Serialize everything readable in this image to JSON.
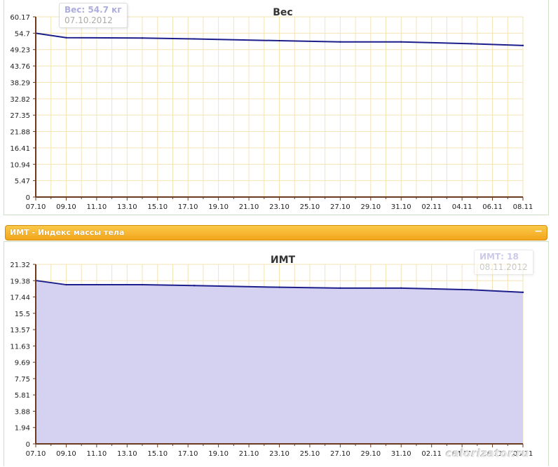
{
  "colors": {
    "line": "#1c1e8c",
    "area": "#d4d2f0",
    "grid": "#f3e4b3",
    "axis": "#6b3a1f",
    "bar": "#f5a623"
  },
  "section_bar": {
    "title": "ИМТ - Индекс массы тела",
    "collapse_icon": "minus-icon",
    "collapse_label": "−"
  },
  "watermark": "calorizator.ru",
  "tooltips": {
    "weight": {
      "value": "Вес: 54.7 кг",
      "date": "07.10.2012"
    },
    "bmi": {
      "value": "ИМТ: 18",
      "date": "08.11.2012"
    }
  },
  "chart_data": [
    {
      "type": "line",
      "title": "Вес",
      "x_labels": [
        "07.10",
        "09.10",
        "11.10",
        "13.10",
        "15.10",
        "17.10",
        "19.10",
        "21.10",
        "23.10",
        "25.10",
        "27.10",
        "29.10",
        "31.10",
        "02.11",
        "04.11",
        "06.11",
        "08.11"
      ],
      "y_ticks": [
        "0",
        "5.47",
        "10.94",
        "16.41",
        "21.88",
        "27.35",
        "32.82",
        "38.29",
        "43.76",
        "49.23",
        "54.7",
        "60.17"
      ],
      "ylim": [
        0,
        60.17
      ],
      "grid": true,
      "series": [
        {
          "x": [
            0,
            1,
            3.5,
            5.2,
            8,
            10,
            12,
            14.3,
            16
          ],
          "values": [
            54.7,
            53.2,
            53.1,
            52.8,
            52.2,
            51.8,
            51.8,
            51.2,
            50.6
          ]
        }
      ]
    },
    {
      "type": "area",
      "title": "ИМТ",
      "x_labels": [
        "07.10",
        "09.10",
        "11.10",
        "13.10",
        "15.10",
        "17.10",
        "19.10",
        "21.10",
        "23.10",
        "25.10",
        "27.10",
        "29.10",
        "31.10",
        "02.11",
        "04.11",
        "06.11",
        "08.11"
      ],
      "y_ticks": [
        "0",
        "1.94",
        "3.88",
        "5.81",
        "7.75",
        "9.69",
        "11.63",
        "13.57",
        "15.5",
        "17.44",
        "19.38",
        "21.32"
      ],
      "ylim": [
        0,
        21.32
      ],
      "grid": true,
      "series": [
        {
          "x": [
            0,
            1,
            3.5,
            5.2,
            8,
            10,
            12,
            14.3,
            16
          ],
          "values": [
            19.4,
            18.9,
            18.9,
            18.8,
            18.6,
            18.5,
            18.5,
            18.3,
            18.0
          ]
        }
      ]
    }
  ]
}
